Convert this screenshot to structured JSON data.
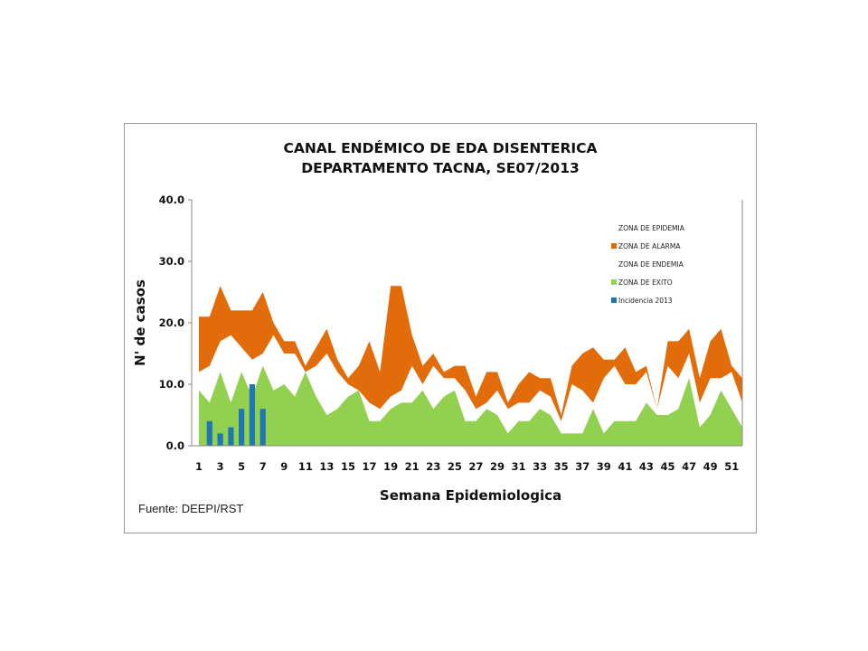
{
  "chart_data": {
    "type": "area",
    "title_lines": [
      "CANAL ENDÉMICO DE EDA DISENTERICA",
      "DEPARTAMENTO TACNA,  SE07/2013"
    ],
    "xlabel": "Semana Epidemiologica",
    "ylabel": "N' de casos",
    "ylim": [
      0,
      40
    ],
    "yticks": [
      "0.0",
      "10.0",
      "20.0",
      "30.0",
      "40.0"
    ],
    "xticks": [
      1,
      3,
      5,
      7,
      9,
      11,
      13,
      15,
      17,
      19,
      21,
      23,
      25,
      27,
      29,
      31,
      33,
      35,
      37,
      39,
      41,
      43,
      45,
      47,
      49,
      51
    ],
    "legend_position": "top-right",
    "colors": {
      "epidemia": "#ffffff",
      "alarma": "#e36c0a",
      "endemia": "#ffffff",
      "exito": "#92d050",
      "incidencia": "#1f77b4"
    },
    "weeks": [
      1,
      2,
      3,
      4,
      5,
      6,
      7,
      8,
      9,
      10,
      11,
      12,
      13,
      14,
      15,
      16,
      17,
      18,
      19,
      20,
      21,
      22,
      23,
      24,
      25,
      26,
      27,
      28,
      29,
      30,
      31,
      32,
      33,
      34,
      35,
      36,
      37,
      38,
      39,
      40,
      41,
      42,
      43,
      44,
      45,
      46,
      47,
      48,
      49,
      50,
      51,
      52
    ],
    "series": [
      {
        "name": "ZONA DE EPIDEMIA",
        "values": []
      },
      {
        "name": "ZONA DE ALARMA",
        "values": [
          21,
          21,
          26,
          22,
          22,
          22,
          25,
          20,
          17,
          17,
          13,
          16,
          19,
          14,
          11,
          13,
          17,
          12,
          26,
          26,
          18,
          13,
          15,
          12,
          13,
          13,
          8,
          12,
          12,
          7,
          10,
          12,
          11,
          11,
          5,
          13,
          15,
          16,
          14,
          14,
          16,
          12,
          13,
          6,
          17,
          17,
          19,
          11,
          17,
          19,
          13,
          11
        ]
      },
      {
        "name": "ZONA DE ENDEMIA",
        "values": [
          12,
          13,
          17,
          18,
          16,
          14,
          15,
          18,
          15,
          15,
          12,
          13,
          15,
          12,
          10,
          9,
          7,
          6,
          8,
          9,
          13,
          10,
          13,
          11,
          11,
          9,
          6,
          7,
          9,
          6,
          7,
          7,
          9,
          8,
          4,
          10,
          9,
          7,
          11,
          13,
          10,
          10,
          12,
          6,
          13,
          11,
          15,
          7,
          11,
          11,
          12,
          7
        ]
      },
      {
        "name": "ZONA DE EXITO",
        "values": [
          9,
          7,
          12,
          7,
          12,
          8,
          13,
          9,
          10,
          8,
          12,
          8,
          5,
          6,
          8,
          9,
          4,
          4,
          6,
          7,
          7,
          9,
          6,
          8,
          9,
          4,
          4,
          6,
          5,
          2,
          4,
          4,
          6,
          5,
          2,
          2,
          2,
          6,
          2,
          4,
          4,
          4,
          7,
          5,
          5,
          6,
          11,
          3,
          5,
          9,
          6,
          3
        ]
      },
      {
        "name": "Incidencia 2013",
        "values": [
          null,
          4,
          2,
          3,
          6,
          10,
          6
        ]
      }
    ]
  }
}
